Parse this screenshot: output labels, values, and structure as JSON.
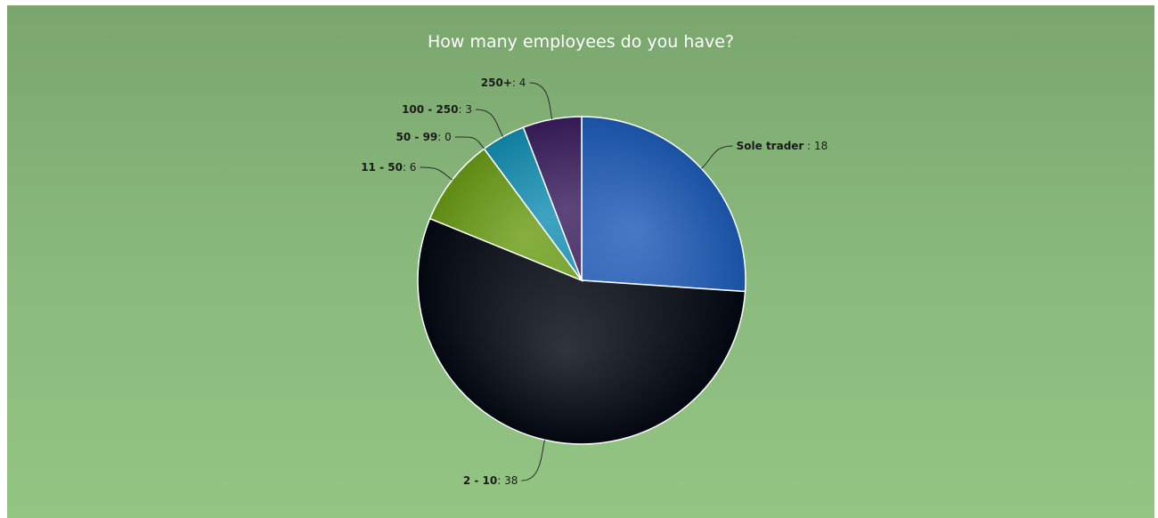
{
  "chart_data": {
    "type": "pie",
    "title": "How many employees do you have?",
    "categories": [
      "Sole trader",
      "2 - 10",
      "11 - 50",
      "50 - 99",
      "100 - 250",
      "250+"
    ],
    "values": [
      18,
      38,
      6,
      0,
      3,
      4
    ],
    "label_separators": [
      " : ",
      ": ",
      ": ",
      ": ",
      ": ",
      ": "
    ],
    "colors": [
      "#1d5cb8",
      "#020812",
      "#6b9e16",
      "#1a8fb0",
      "#138fb3",
      "#3a1d5e"
    ],
    "legend": false
  }
}
